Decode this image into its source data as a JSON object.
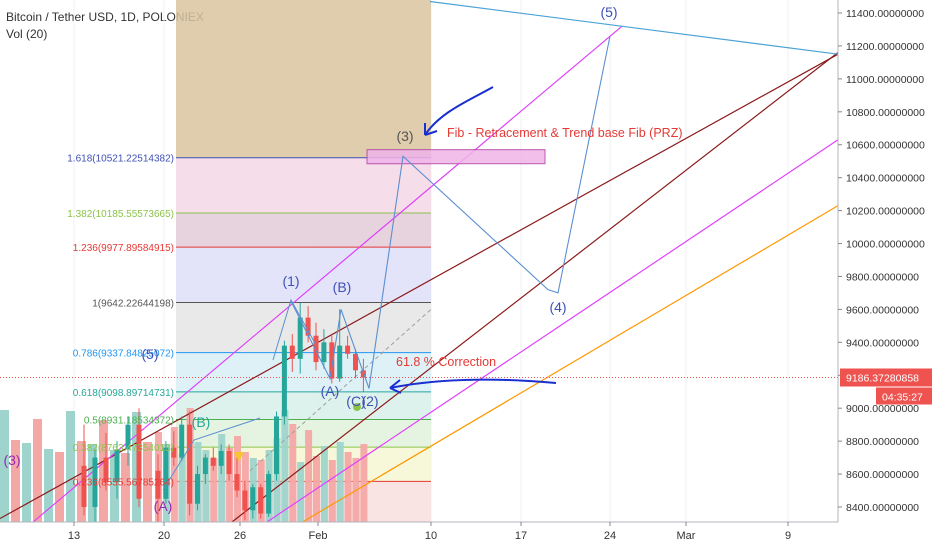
{
  "header": {
    "symbol": "Bitcoin / Tether USD, 1D, POLONIEX",
    "volume_label": "Vol (20)"
  },
  "chart_data": {
    "type": "candlestick",
    "price_axis": {
      "ticks": [
        8400,
        8600,
        8800,
        9000,
        9200,
        9400,
        9600,
        9800,
        10000,
        10200,
        10400,
        10600,
        10800,
        11000,
        11200,
        11400
      ],
      "tick_labels": [
        "8400.00000000",
        "8600.00000000",
        "8800.00000000",
        "9000.00000000",
        "9200.00000000",
        "9400.00000000",
        "9600.00000000",
        "9800.00000000",
        "10000.00000000",
        "10200.00000000",
        "10400.00000000",
        "10600.00000000",
        "10800.00000000",
        "11000.00000000",
        "11200.00000000",
        "11400.00000000"
      ],
      "range": [
        8250,
        11470
      ]
    },
    "time_axis": {
      "ticks": [
        13,
        20,
        26,
        "Feb",
        10,
        17,
        24,
        "Mar",
        9
      ],
      "tick_labels": [
        "13",
        "20",
        "26",
        "Feb",
        "10",
        "17",
        "24",
        "Mar",
        "9"
      ]
    },
    "last_price": {
      "value": 9186.37280858,
      "label": "9186.37280858",
      "countdown": "04:35:27"
    },
    "fib_levels": [
      {
        "ratio": "1.618",
        "value": 10521.22514382,
        "label": "1.618(10521.22514382)",
        "color": "#3f51b5"
      },
      {
        "ratio": "1.382",
        "value": 10185.55573665,
        "label": "1.382(10185.55573665)",
        "color": "#8bc34a"
      },
      {
        "ratio": "1.236",
        "value": 9977.89584915,
        "label": "1.236(9977.89584915)",
        "color": "#e53935"
      },
      {
        "ratio": "1",
        "value": 9642.22644198,
        "label": "1(9642.22644198)",
        "color": "#555555"
      },
      {
        "ratio": "0.786",
        "value": 9337.84825072,
        "label": "0.786(9337.84825072)",
        "color": "#2196f3"
      },
      {
        "ratio": "0.618",
        "value": 9098.89714731,
        "label": "0.618(9098.89714731)",
        "color": "#26a69a"
      },
      {
        "ratio": "0.5",
        "value": 8931.18534372,
        "label": "0.5(8931.18534372)",
        "color": "#4caf50"
      },
      {
        "ratio": "0.382",
        "value": 8763.47354013,
        "label": "0.382(8763.47354013)",
        "color": "#8bc34a"
      },
      {
        "ratio": "0.236",
        "value": 8555.56785264,
        "label": "0.236(8555.56785264)",
        "color": "#e53935"
      }
    ],
    "candles": [
      {
        "o": 8620,
        "h": 8720,
        "l": 8300,
        "c": 8450
      },
      {
        "o": 8450,
        "h": 8800,
        "l": 8420,
        "c": 8760
      },
      {
        "o": 8760,
        "h": 8860,
        "l": 8650,
        "c": 8700
      },
      {
        "o": 8700,
        "h": 8950,
        "l": 8680,
        "c": 8900
      },
      {
        "o": 8900,
        "h": 8980,
        "l": 8350,
        "c": 8420
      },
      {
        "o": 8420,
        "h": 8650,
        "l": 8380,
        "c": 8600
      },
      {
        "o": 8600,
        "h": 8720,
        "l": 8540,
        "c": 8700
      },
      {
        "o": 8700,
        "h": 8760,
        "l": 8620,
        "c": 8650
      },
      {
        "o": 8650,
        "h": 8780,
        "l": 8600,
        "c": 8740
      },
      {
        "o": 8740,
        "h": 8780,
        "l": 8560,
        "c": 8600
      },
      {
        "o": 8600,
        "h": 8700,
        "l": 8460,
        "c": 8500
      },
      {
        "o": 8500,
        "h": 8560,
        "l": 8320,
        "c": 8380
      },
      {
        "o": 8380,
        "h": 8540,
        "l": 8330,
        "c": 8520
      },
      {
        "o": 8520,
        "h": 8540,
        "l": 8330,
        "c": 8360
      },
      {
        "o": 8360,
        "h": 8620,
        "l": 8340,
        "c": 8600
      },
      {
        "o": 8600,
        "h": 8980,
        "l": 8560,
        "c": 8950
      },
      {
        "o": 8950,
        "h": 9410,
        "l": 8900,
        "c": 9380
      },
      {
        "o": 9380,
        "h": 9450,
        "l": 9220,
        "c": 9300
      },
      {
        "o": 9300,
        "h": 9640,
        "l": 9210,
        "c": 9550
      },
      {
        "o": 9550,
        "h": 9620,
        "l": 9400,
        "c": 9440
      },
      {
        "o": 9440,
        "h": 9520,
        "l": 9230,
        "c": 9280
      },
      {
        "o": 9280,
        "h": 9480,
        "l": 9240,
        "c": 9400
      },
      {
        "o": 9400,
        "h": 9440,
        "l": 9150,
        "c": 9180
      },
      {
        "o": 9180,
        "h": 9600,
        "l": 9160,
        "c": 9380
      },
      {
        "o": 9380,
        "h": 9440,
        "l": 9300,
        "c": 9330
      },
      {
        "o": 9330,
        "h": 9360,
        "l": 9180,
        "c": 9230
      },
      {
        "o": 9230,
        "h": 9300,
        "l": 9100,
        "c": 9186.37
      }
    ],
    "wave_labels": [
      {
        "text": "(1)",
        "price": 9680,
        "color": "#3f51b5"
      },
      {
        "text": "(B)",
        "price": 9640,
        "color": "#3f51b5"
      },
      {
        "text": "(A)",
        "price": 9130,
        "color": "#3f51b5"
      },
      {
        "text": "(C)",
        "price": 9060,
        "color": "#3f51b5"
      },
      {
        "text": "(2)",
        "price": 9060,
        "color": "#3f51b5"
      },
      {
        "text": "(3)",
        "price": 10590,
        "color": "#555555"
      },
      {
        "text": "(4)",
        "price": 9580,
        "color": "#3f51b5"
      },
      {
        "text": "(5)",
        "price": 11340,
        "color": "#3f51b5"
      },
      {
        "text": "(5)",
        "price": 9300,
        "color": "#3f51b5"
      },
      {
        "text": "(B)",
        "price": 8810,
        "color": "#26a69a"
      },
      {
        "text": "(A)",
        "price": 8350,
        "color": "#9c27b0"
      },
      {
        "text": "(3)",
        "price": 8610,
        "color": "#9c27b0"
      }
    ],
    "annotations": [
      {
        "text": "Fib - Retracement & Trend base  Fib (PRZ)",
        "price": 10620,
        "color": "#e53935"
      },
      {
        "text": "61.8 % Correction",
        "price": 9250,
        "color": "#e53935"
      }
    ],
    "colors": {
      "up": "#26a69a",
      "down": "#ef5350",
      "vol_up": "#9ed4cc",
      "vol_down": "#f4a8a6",
      "channel_dark": "#8b1a1a",
      "channel_magenta": "#e040fb",
      "trend_orange": "#ff9800",
      "trend_blue": "#4aa3d6",
      "wave_line": "#5b8fd1",
      "arrow": "#1a2fcf",
      "last_price": "#ef5350"
    }
  }
}
